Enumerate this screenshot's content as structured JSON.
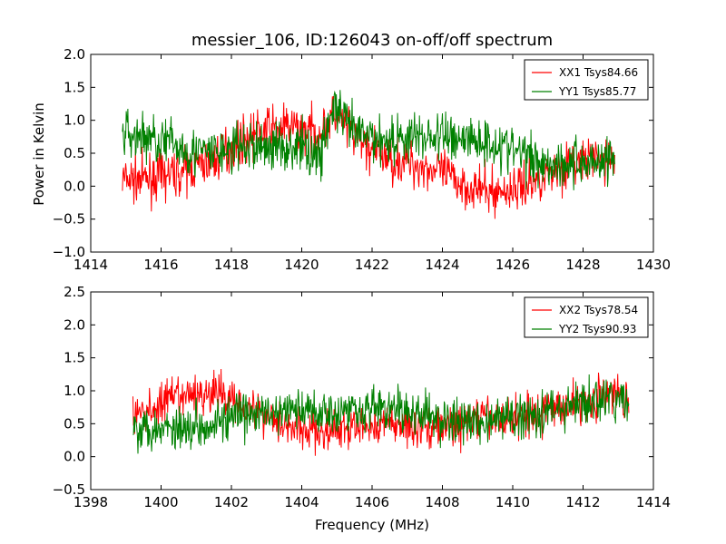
{
  "chart_data": [
    {
      "type": "line",
      "title": "messier_106, ID:126043 on-off/off spectrum",
      "xlabel": "",
      "ylabel": "Power in Kelvin",
      "xlim": [
        1414,
        1430
      ],
      "ylim": [
        -1.0,
        2.0
      ],
      "xticks": [
        "1414",
        "1416",
        "1418",
        "1420",
        "1422",
        "1424",
        "1426",
        "1428",
        "1430"
      ],
      "yticks": [
        "−1.0",
        "−0.5",
        "0.0",
        "0.5",
        "1.0",
        "1.5",
        "2.0"
      ],
      "legend_position": "top-right",
      "series": [
        {
          "name": "XX1 Tsys84.66",
          "color": "#ff0000",
          "x": [
            1414.9,
            1415.5,
            1416.0,
            1416.5,
            1417.0,
            1417.5,
            1418.0,
            1418.5,
            1419.0,
            1419.5,
            1420.0,
            1420.5,
            1420.9,
            1421.5,
            1422.0,
            1422.5,
            1423.0,
            1423.5,
            1424.0,
            1424.5,
            1425.0,
            1425.5,
            1426.0,
            1426.5,
            1427.0,
            1427.5,
            1428.0,
            1428.5,
            1428.9
          ],
          "y": [
            0.1,
            0.1,
            0.15,
            0.2,
            0.3,
            0.4,
            0.6,
            0.75,
            0.85,
            0.9,
            0.85,
            0.8,
            1.1,
            0.75,
            0.55,
            0.4,
            0.35,
            0.3,
            0.2,
            0.05,
            -0.05,
            -0.1,
            -0.05,
            0.05,
            0.2,
            0.3,
            0.4,
            0.4,
            0.4
          ]
        },
        {
          "name": "YY1 Tsys85.77",
          "color": "#008000",
          "x": [
            1414.9,
            1415.5,
            1416.0,
            1416.5,
            1417.0,
            1417.5,
            1418.0,
            1418.5,
            1419.0,
            1419.5,
            1420.0,
            1420.5,
            1420.9,
            1421.5,
            1422.0,
            1422.5,
            1423.0,
            1423.5,
            1424.0,
            1424.5,
            1425.0,
            1425.5,
            1426.0,
            1426.5,
            1427.0,
            1427.5,
            1428.0,
            1428.5,
            1428.9
          ],
          "y": [
            0.8,
            0.75,
            0.7,
            0.6,
            0.5,
            0.5,
            0.55,
            0.6,
            0.6,
            0.6,
            0.6,
            0.45,
            1.2,
            0.8,
            0.75,
            0.7,
            0.75,
            0.75,
            0.75,
            0.75,
            0.7,
            0.65,
            0.55,
            0.45,
            0.35,
            0.35,
            0.35,
            0.4,
            0.45
          ]
        }
      ]
    },
    {
      "type": "line",
      "title": "",
      "xlabel": "Frequency (MHz)",
      "ylabel": "",
      "xlim": [
        1398,
        1414
      ],
      "ylim": [
        -0.5,
        2.5
      ],
      "xticks": [
        "1398",
        "1400",
        "1402",
        "1404",
        "1406",
        "1408",
        "1410",
        "1412",
        "1414"
      ],
      "yticks": [
        "−0.5",
        "0.0",
        "0.5",
        "1.0",
        "1.5",
        "2.0",
        "2.5"
      ],
      "legend_position": "top-right",
      "series": [
        {
          "name": "XX2 Tsys78.54",
          "color": "#ff0000",
          "x": [
            1399.2,
            1399.7,
            1400.2,
            1400.7,
            1401.2,
            1401.7,
            1402.2,
            1402.7,
            1403.2,
            1403.7,
            1404.2,
            1404.7,
            1405.2,
            1405.7,
            1406.2,
            1406.7,
            1407.2,
            1407.7,
            1408.2,
            1408.7,
            1409.0,
            1409.5,
            1410.0,
            1410.5,
            1411.0,
            1411.5,
            1412.0,
            1412.5,
            1413.0,
            1413.3
          ],
          "y": [
            0.6,
            0.7,
            0.85,
            0.9,
            0.95,
            0.95,
            0.85,
            0.7,
            0.6,
            0.45,
            0.4,
            0.35,
            0.4,
            0.45,
            0.5,
            0.5,
            0.45,
            0.45,
            0.45,
            0.5,
            0.6,
            0.55,
            0.6,
            0.65,
            0.7,
            0.8,
            0.85,
            0.9,
            0.95,
            0.9
          ]
        },
        {
          "name": "YY2 Tsys90.93",
          "color": "#008000",
          "x": [
            1399.2,
            1399.7,
            1400.2,
            1400.7,
            1401.2,
            1401.7,
            1402.2,
            1402.7,
            1403.2,
            1403.7,
            1404.2,
            1404.7,
            1405.2,
            1405.7,
            1406.2,
            1406.7,
            1407.2,
            1407.7,
            1408.2,
            1408.7,
            1409.0,
            1409.5,
            1410.0,
            1410.5,
            1411.0,
            1411.5,
            1412.0,
            1412.5,
            1413.0,
            1413.3
          ],
          "y": [
            0.45,
            0.45,
            0.45,
            0.45,
            0.5,
            0.55,
            0.6,
            0.65,
            0.65,
            0.7,
            0.7,
            0.7,
            0.7,
            0.75,
            0.75,
            0.7,
            0.65,
            0.6,
            0.55,
            0.5,
            0.55,
            0.55,
            0.6,
            0.65,
            0.7,
            0.75,
            0.8,
            0.85,
            0.85,
            0.85
          ]
        }
      ]
    }
  ]
}
